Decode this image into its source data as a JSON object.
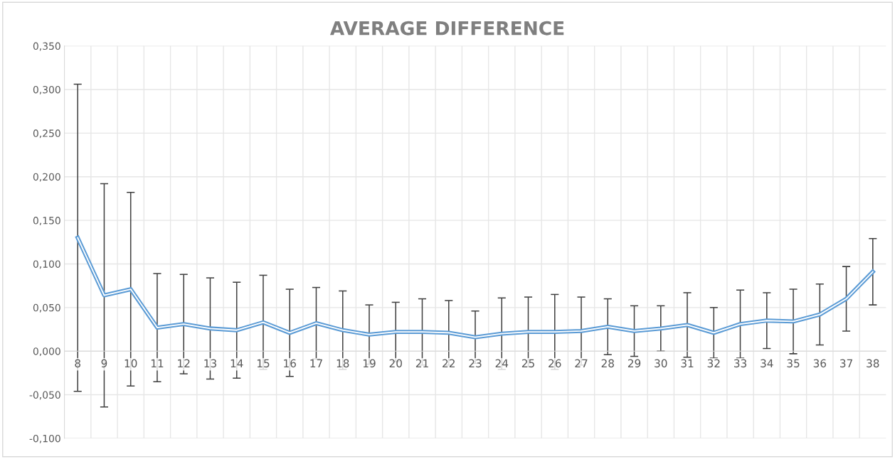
{
  "chart_data": {
    "type": "line",
    "title": "AVERAGE DIFFERENCE",
    "categories": [
      "8",
      "9",
      "10",
      "11",
      "12",
      "13",
      "14",
      "15",
      "16",
      "17",
      "18",
      "19",
      "20",
      "21",
      "22",
      "23",
      "24",
      "25",
      "26",
      "27",
      "28",
      "29",
      "30",
      "31",
      "32",
      "33",
      "34",
      "35",
      "36",
      "37",
      "38"
    ],
    "series": [
      {
        "color": "#5b9bd5",
        "values": [
          0.13,
          0.064,
          0.071,
          0.027,
          0.031,
          0.026,
          0.024,
          0.033,
          0.021,
          0.032,
          0.024,
          0.019,
          0.022,
          0.022,
          0.021,
          0.016,
          0.02,
          0.022,
          0.022,
          0.023,
          0.028,
          0.023,
          0.026,
          0.03,
          0.021,
          0.031,
          0.035,
          0.034,
          0.042,
          0.06,
          0.091
        ],
        "errors": [
          0.176,
          0.128,
          0.111,
          0.062,
          0.057,
          0.058,
          0.055,
          0.054,
          0.05,
          0.041,
          0.045,
          0.034,
          0.034,
          0.038,
          0.037,
          0.03,
          0.041,
          0.04,
          0.043,
          0.039,
          0.032,
          0.029,
          0.026,
          0.037,
          0.029,
          0.039,
          0.032,
          0.037,
          0.035,
          0.037,
          0.038
        ]
      }
    ],
    "ylim": [
      -0.1,
      0.35
    ],
    "yticks": [
      {
        "value": -0.1,
        "label": "-0,100"
      },
      {
        "value": -0.05,
        "label": "-0,050"
      },
      {
        "value": 0,
        "label": "0,000"
      },
      {
        "value": 0.05,
        "label": "0,050"
      },
      {
        "value": 0.1,
        "label": "0,100"
      },
      {
        "value": 0.15,
        "label": "0,150"
      },
      {
        "value": 0.2,
        "label": "0,200"
      },
      {
        "value": 0.25,
        "label": "0,250"
      },
      {
        "value": 0.3,
        "label": "0,300"
      },
      {
        "value": 0.35,
        "label": "0,350"
      }
    ],
    "grid": true,
    "marker": "none",
    "line_style": "solid"
  }
}
